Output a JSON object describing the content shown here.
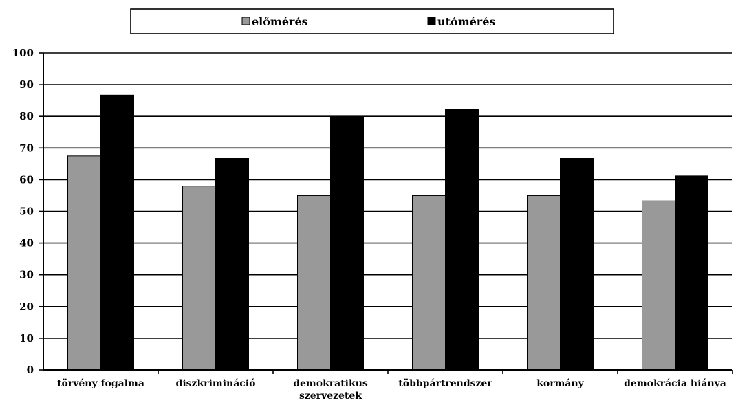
{
  "chart_data": {
    "type": "bar",
    "categories": [
      [
        "törvény fogalma"
      ],
      [
        "diszkrimináció"
      ],
      [
        "demokratikus",
        "szervezetek"
      ],
      [
        "többpártrendszer"
      ],
      [
        "kormány"
      ],
      [
        "demokrácia hiánya"
      ]
    ],
    "series": [
      {
        "name": "előmérés",
        "color": "#999999",
        "values": [
          67.5,
          58,
          55,
          55,
          55,
          53.3
        ]
      },
      {
        "name": "utómérés",
        "color": "#000000",
        "values": [
          86.7,
          66.7,
          80,
          82.2,
          66.7,
          61.2
        ]
      }
    ],
    "ylim": [
      0,
      100
    ],
    "yticks": [
      0,
      10,
      20,
      30,
      40,
      50,
      60,
      70,
      80,
      90,
      100
    ],
    "grid": true,
    "legend_position": "top"
  }
}
